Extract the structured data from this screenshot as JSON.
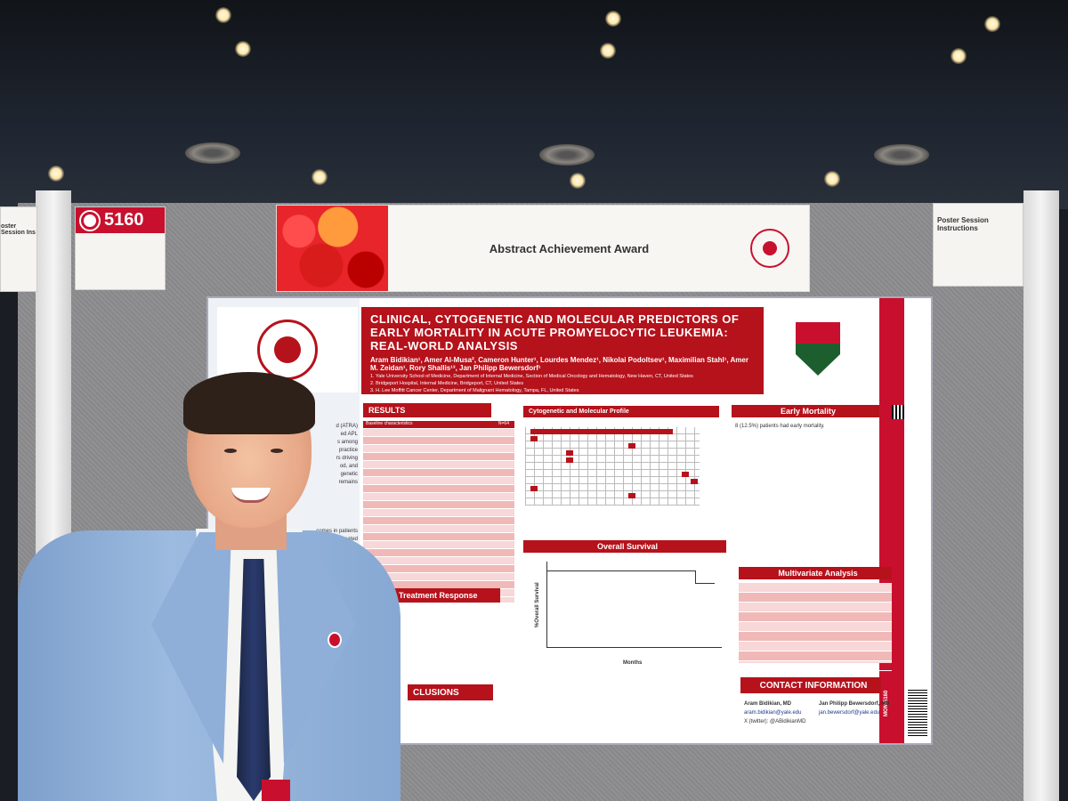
{
  "booth_number": "5160",
  "instructions_title": "Poster Session Instructions",
  "instructions_left_fragment": "oster Session Ins",
  "award_title": "Abstract Achievement Award",
  "poster": {
    "title": "CLINICAL, CYTOGENETIC AND MOLECULAR PREDICTORS OF EARLY MORTALITY IN ACUTE PROMYELOCYTIC LEUKEMIA: REAL-WORLD ANALYSIS",
    "authors": "Aram Bidikian¹, Amer Al-Musa², Cameron Hunter¹, Lourdes Mendez¹, Nikolai Podoltsev¹, Maximilian Stahl¹, Amer M. Zeidan¹, Rory Shallis¹³, Jan Philipp Bewersdorf¹",
    "affiliations": [
      "1. Yale University School of Medicine, Department of Internal Medicine, Section of Medical Oncology and Hematology, New Haven, CT, United States",
      "2. Bridgeport Hospital, Internal Medicine, Bridgeport, CT, United States",
      "3. H. Lee Moffitt Cancer Center, Department of Malignant Hematology, Tampa, FL, United States"
    ],
    "sections": {
      "results": "RESULTS",
      "cytogenetic": "Cytogenetic and Molecular Profile",
      "early_mortality": "Early Mortality",
      "overall_survival": "Overall Survival",
      "multivariate": "Multivariate Analysis",
      "treatment_response": "Treatment Response",
      "conclusions": "CLUSIONS",
      "contact": "CONTACT INFORMATION"
    },
    "baseline_header": [
      "Baseline characteristics",
      "N=64"
    ],
    "early_mortality_text": "8 (12.5%) patients had early mortality.",
    "survival_xlabel": "Months",
    "survival_ylabel": "%Overall Survival",
    "contact_names": [
      "Aram Bidikian, MD",
      "Jan Philipp Bewersdorf, MD"
    ],
    "contact_emails": [
      "aram.bidikian@yale.edu",
      "jan.bewersdorf@yale.edu"
    ],
    "twitter": "X (twitter): @ABidikianMD",
    "side_code": "MON-5160",
    "left_fragment_lines": [
      "d (ATRA)",
      "ed APL",
      "s among",
      "practice",
      "rs driving",
      "od, and",
      "genetic",
      "remains"
    ],
    "left_fragment_lines2": [
      "comes in patients",
      "leukemia treated"
    ]
  }
}
